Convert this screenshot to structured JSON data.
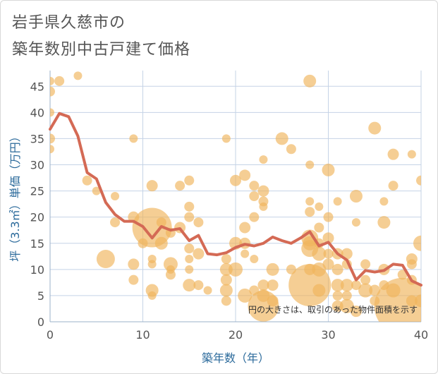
{
  "title_line1": "岩手県久慈市の",
  "title_line2": "築年数別中古戸建て価格",
  "chart_data": {
    "type": "scatter",
    "xlabel": "築年数（年）",
    "ylabel": "坪（3.3㎡）単価（万円）",
    "xlim": [
      0,
      40
    ],
    "ylim": [
      0,
      48
    ],
    "xticks": [
      0,
      10,
      20,
      30,
      40
    ],
    "yticks": [
      0,
      5,
      10,
      15,
      20,
      25,
      30,
      35,
      40,
      45
    ],
    "grid": true,
    "note": "円の大きさは、取引のあった物件面積を示す",
    "colors": {
      "bubble": "#f0b35a",
      "line": "#d46a55",
      "grid": "#c5d3e6"
    },
    "line": {
      "x": [
        0,
        1,
        2,
        3,
        4,
        5,
        6,
        7,
        8,
        9,
        10,
        11,
        12,
        13,
        14,
        15,
        16,
        17,
        18,
        19,
        20,
        21,
        22,
        23,
        24,
        25,
        26,
        27,
        28,
        29,
        30,
        31,
        32,
        33,
        34,
        35,
        36,
        37,
        38,
        39,
        40
      ],
      "y": [
        36.8,
        39.8,
        39.2,
        35.5,
        28.5,
        27.3,
        22.8,
        20.5,
        19.2,
        19.2,
        18.2,
        16.0,
        18.2,
        17.5,
        17.8,
        15.5,
        16.5,
        13.0,
        12.8,
        13.2,
        14.2,
        14.8,
        14.5,
        15.0,
        16.2,
        15.5,
        15.0,
        16.0,
        17.2,
        14.5,
        15.2,
        13.0,
        11.8,
        8.0,
        9.8,
        9.5,
        9.8,
        11.0,
        10.8,
        7.8,
        7.0
      ]
    },
    "bubbles": [
      {
        "x": 0,
        "y": 46,
        "s": 6
      },
      {
        "x": 0,
        "y": 44,
        "s": 7
      },
      {
        "x": 0,
        "y": 40,
        "s": 6
      },
      {
        "x": 0,
        "y": 35,
        "s": 7
      },
      {
        "x": 0,
        "y": 33,
        "s": 6
      },
      {
        "x": 1,
        "y": 46,
        "s": 7
      },
      {
        "x": 3,
        "y": 47,
        "s": 6
      },
      {
        "x": 4,
        "y": 27,
        "s": 7
      },
      {
        "x": 5,
        "y": 25,
        "s": 6
      },
      {
        "x": 6,
        "y": 12,
        "s": 13
      },
      {
        "x": 7,
        "y": 19,
        "s": 7
      },
      {
        "x": 7,
        "y": 24,
        "s": 6
      },
      {
        "x": 9,
        "y": 35,
        "s": 6
      },
      {
        "x": 9,
        "y": 20,
        "s": 8
      },
      {
        "x": 9,
        "y": 11,
        "s": 8
      },
      {
        "x": 9,
        "y": 8,
        "s": 7
      },
      {
        "x": 10,
        "y": 15,
        "s": 7
      },
      {
        "x": 11,
        "y": 26,
        "s": 8
      },
      {
        "x": 11,
        "y": 18,
        "s": 28
      },
      {
        "x": 11,
        "y": 12,
        "s": 6
      },
      {
        "x": 11,
        "y": 11,
        "s": 6
      },
      {
        "x": 11,
        "y": 6,
        "s": 9
      },
      {
        "x": 11,
        "y": 5,
        "s": 6
      },
      {
        "x": 12,
        "y": 15,
        "s": 9
      },
      {
        "x": 12,
        "y": 19,
        "s": 7
      },
      {
        "x": 13,
        "y": 17,
        "s": 7
      },
      {
        "x": 13,
        "y": 11,
        "s": 10
      },
      {
        "x": 13,
        "y": 10,
        "s": 6
      },
      {
        "x": 13,
        "y": 9,
        "s": 7
      },
      {
        "x": 14,
        "y": 26,
        "s": 7
      },
      {
        "x": 14,
        "y": 18,
        "s": 8
      },
      {
        "x": 15,
        "y": 27,
        "s": 7
      },
      {
        "x": 15,
        "y": 22,
        "s": 7
      },
      {
        "x": 15,
        "y": 20,
        "s": 7
      },
      {
        "x": 15,
        "y": 14,
        "s": 7
      },
      {
        "x": 15,
        "y": 12,
        "s": 6
      },
      {
        "x": 15,
        "y": 10,
        "s": 6
      },
      {
        "x": 15,
        "y": 7,
        "s": 9
      },
      {
        "x": 16,
        "y": 19,
        "s": 7
      },
      {
        "x": 16,
        "y": 13,
        "s": 8
      },
      {
        "x": 16,
        "y": 7,
        "s": 7
      },
      {
        "x": 17,
        "y": 6,
        "s": 6
      },
      {
        "x": 19,
        "y": 35,
        "s": 6
      },
      {
        "x": 19,
        "y": 12,
        "s": 7
      },
      {
        "x": 19,
        "y": 10,
        "s": 9
      },
      {
        "x": 19,
        "y": 8,
        "s": 8
      },
      {
        "x": 19,
        "y": 6,
        "s": 9
      },
      {
        "x": 19,
        "y": 4,
        "s": 7
      },
      {
        "x": 20,
        "y": 27,
        "s": 8
      },
      {
        "x": 20,
        "y": 15,
        "s": 9
      },
      {
        "x": 20,
        "y": 10,
        "s": 10
      },
      {
        "x": 21,
        "y": 28,
        "s": 8
      },
      {
        "x": 21,
        "y": 18,
        "s": 8
      },
      {
        "x": 21,
        "y": 15,
        "s": 8
      },
      {
        "x": 21,
        "y": 13,
        "s": 6
      },
      {
        "x": 21,
        "y": 5,
        "s": 10
      },
      {
        "x": 22,
        "y": 26,
        "s": 7
      },
      {
        "x": 22,
        "y": 24,
        "s": 7
      },
      {
        "x": 22,
        "y": 20,
        "s": 7
      },
      {
        "x": 22,
        "y": 12,
        "s": 6
      },
      {
        "x": 22,
        "y": 6,
        "s": 7
      },
      {
        "x": 23,
        "y": 31,
        "s": 6
      },
      {
        "x": 23,
        "y": 25,
        "s": 8
      },
      {
        "x": 23,
        "y": 23,
        "s": 7
      },
      {
        "x": 23,
        "y": 22,
        "s": 6
      },
      {
        "x": 23,
        "y": 7,
        "s": 8
      },
      {
        "x": 23,
        "y": 5,
        "s": 9
      },
      {
        "x": 23,
        "y": 3,
        "s": 22
      },
      {
        "x": 24,
        "y": 10,
        "s": 9
      },
      {
        "x": 24,
        "y": 7,
        "s": 8
      },
      {
        "x": 24,
        "y": 4,
        "s": 8
      },
      {
        "x": 25,
        "y": 35,
        "s": 9
      },
      {
        "x": 26,
        "y": 33,
        "s": 7
      },
      {
        "x": 26,
        "y": 10,
        "s": 7
      },
      {
        "x": 28,
        "y": 46,
        "s": 9
      },
      {
        "x": 28,
        "y": 30,
        "s": 6
      },
      {
        "x": 28,
        "y": 23,
        "s": 6
      },
      {
        "x": 28,
        "y": 21,
        "s": 7
      },
      {
        "x": 28,
        "y": 16,
        "s": 12
      },
      {
        "x": 28,
        "y": 15,
        "s": 10
      },
      {
        "x": 28,
        "y": 14,
        "s": 12
      },
      {
        "x": 28,
        "y": 10,
        "s": 8
      },
      {
        "x": 28,
        "y": 7,
        "s": 30
      },
      {
        "x": 29,
        "y": 22,
        "s": 6
      },
      {
        "x": 29,
        "y": 18,
        "s": 7
      },
      {
        "x": 29,
        "y": 15,
        "s": 7
      },
      {
        "x": 29,
        "y": 13,
        "s": 10
      },
      {
        "x": 29,
        "y": 10,
        "s": 10
      },
      {
        "x": 29,
        "y": 6,
        "s": 9
      },
      {
        "x": 30,
        "y": 29,
        "s": 9
      },
      {
        "x": 30,
        "y": 20,
        "s": 7
      },
      {
        "x": 30,
        "y": 16,
        "s": 8
      },
      {
        "x": 30,
        "y": 13,
        "s": 7
      },
      {
        "x": 30,
        "y": 11,
        "s": 8
      },
      {
        "x": 31,
        "y": 23,
        "s": 6
      },
      {
        "x": 31,
        "y": 13,
        "s": 8
      },
      {
        "x": 31,
        "y": 10,
        "s": 8
      },
      {
        "x": 31,
        "y": 7,
        "s": 9
      },
      {
        "x": 31,
        "y": 5,
        "s": 7
      },
      {
        "x": 31,
        "y": 3,
        "s": 8
      },
      {
        "x": 32,
        "y": 13,
        "s": 8
      },
      {
        "x": 32,
        "y": 11,
        "s": 7
      },
      {
        "x": 32,
        "y": 7,
        "s": 9
      },
      {
        "x": 32,
        "y": 5,
        "s": 7
      },
      {
        "x": 32,
        "y": 3,
        "s": 10
      },
      {
        "x": 33,
        "y": 24,
        "s": 9
      },
      {
        "x": 33,
        "y": 19,
        "s": 6
      },
      {
        "x": 33,
        "y": 7,
        "s": 7
      },
      {
        "x": 33,
        "y": 2,
        "s": 8
      },
      {
        "x": 34,
        "y": 11,
        "s": 7
      },
      {
        "x": 34,
        "y": 8,
        "s": 7
      },
      {
        "x": 34,
        "y": 6,
        "s": 10
      },
      {
        "x": 35,
        "y": 37,
        "s": 9
      },
      {
        "x": 35,
        "y": 6,
        "s": 8
      },
      {
        "x": 35,
        "y": 4,
        "s": 7
      },
      {
        "x": 36,
        "y": 23,
        "s": 6
      },
      {
        "x": 36,
        "y": 19,
        "s": 9
      },
      {
        "x": 36,
        "y": 10,
        "s": 8
      },
      {
        "x": 36,
        "y": 7,
        "s": 7
      },
      {
        "x": 37,
        "y": 32,
        "s": 8
      },
      {
        "x": 37,
        "y": 26,
        "s": 7
      },
      {
        "x": 37,
        "y": 6,
        "s": 10
      },
      {
        "x": 38,
        "y": 3,
        "s": 40
      },
      {
        "x": 38,
        "y": 9,
        "s": 7
      },
      {
        "x": 39,
        "y": 32,
        "s": 6
      },
      {
        "x": 39,
        "y": 12,
        "s": 8
      },
      {
        "x": 39,
        "y": 11,
        "s": 7
      },
      {
        "x": 39,
        "y": 8,
        "s": 7
      },
      {
        "x": 39,
        "y": 4,
        "s": 8
      },
      {
        "x": 40,
        "y": 27,
        "s": 7
      },
      {
        "x": 40,
        "y": 15,
        "s": 11
      },
      {
        "x": 40,
        "y": 4,
        "s": 9
      }
    ]
  }
}
